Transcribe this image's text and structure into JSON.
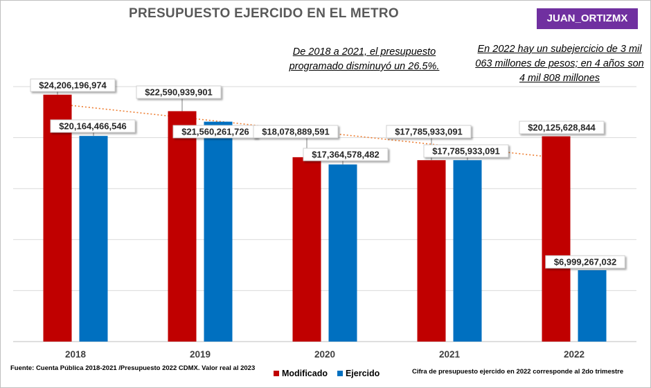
{
  "title": "PRESUPUESTO EJERCIDO EN EL METRO",
  "badge": "JUAN_ORTIZMX",
  "note_left": "De 2018 a 2021, el presupuesto programado disminuyó un 26.5%.",
  "note_right": "En 2022 hay un subejercicio de 3 mil 063 millones de pesos; en 4 años son 4 mil 808 millones",
  "source": "Fuente: Cuenta Pública 2018-2021 /Presupuesto 2022 CDMX. Valor real al 2023",
  "footnote": "Cifra de presupuesto ejercido en 2022 corresponde al 2do trimestre",
  "colors": {
    "modificado": "#c00000",
    "ejercido": "#0070c0",
    "trend": "#ed7d31",
    "badge": "#7030a0"
  },
  "chart_data": {
    "type": "bar",
    "categories": [
      "2018",
      "2019",
      "2020",
      "2021",
      "2022"
    ],
    "ylim": [
      0,
      25000000000
    ],
    "grid": true,
    "legend": "bottom",
    "series": [
      {
        "name": "Modificado",
        "values": [
          24206196974,
          22590939901,
          18078889591,
          17785933091,
          20125628844
        ],
        "labels": [
          "$24,206,196,974",
          "$22,590,939,901",
          "$18,078,889,591",
          "$17,785,933,091",
          "$20,125,628,844"
        ]
      },
      {
        "name": "Ejercido",
        "values": [
          20164466546,
          21560261726,
          17364578482,
          17785933091,
          6999267032
        ],
        "labels": [
          "$20,164,466,546",
          "$21,560,261,726",
          "$17,364,578,482",
          "$17,785,933,091",
          "$6,999,267,032"
        ]
      }
    ],
    "trendline": {
      "series": "Modificado",
      "type": "linear",
      "style": "dotted"
    }
  }
}
